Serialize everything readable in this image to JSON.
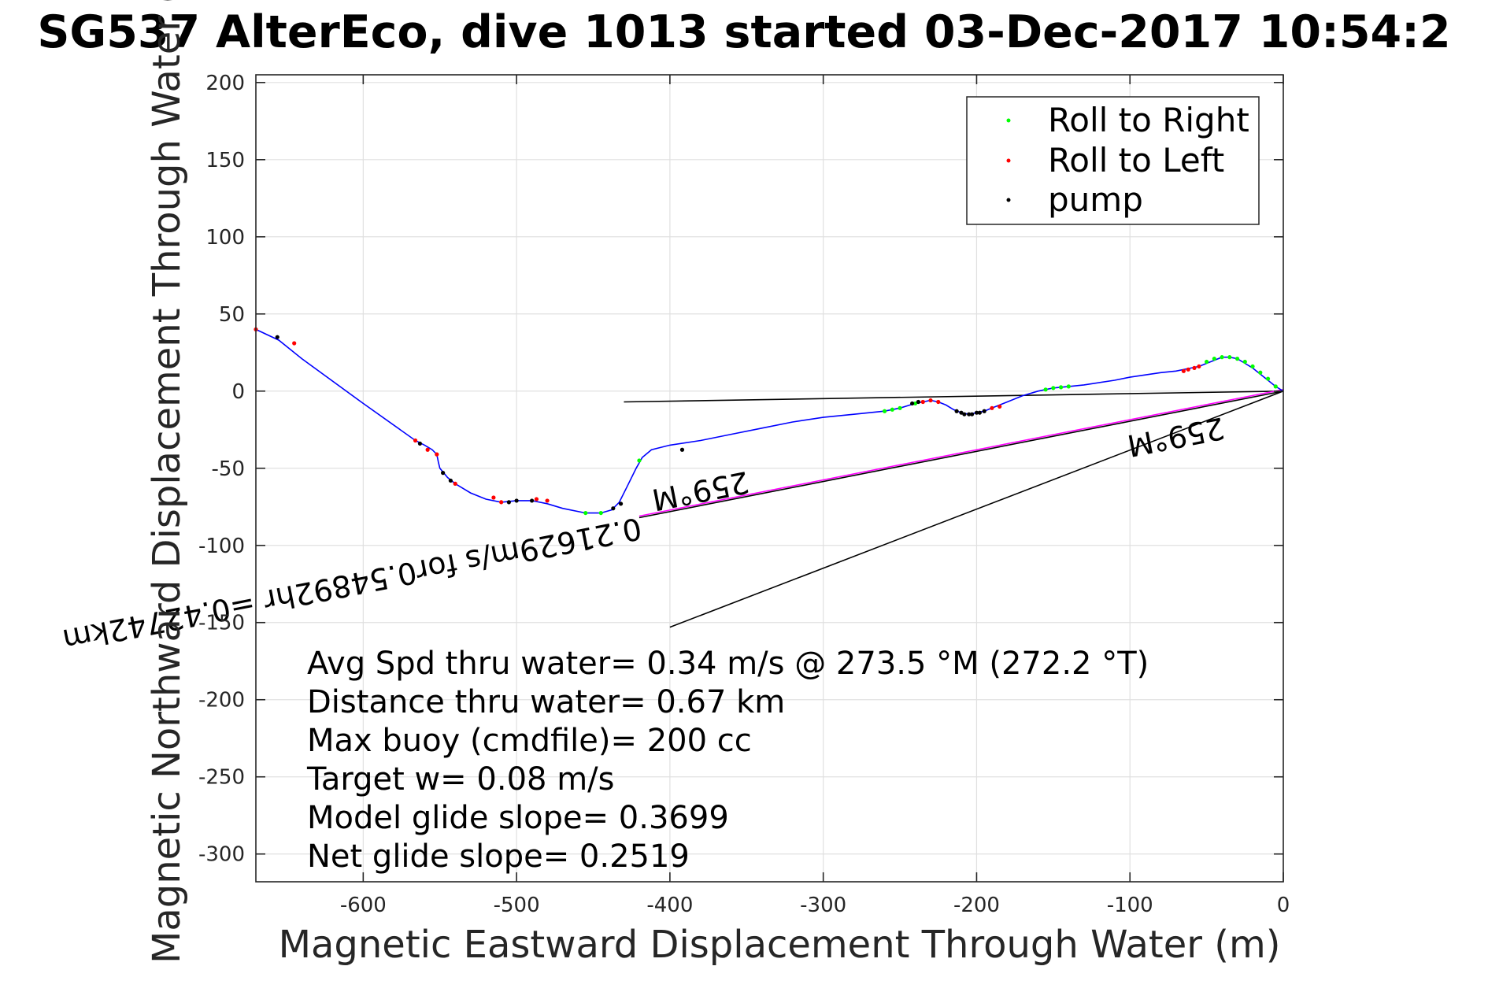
{
  "chart_data": {
    "type": "line",
    "title": "SG537 AlterEco, dive 1013 started 03-Dec-2017 10:54:2",
    "xlabel": "Magnetic Eastward Displacement Through Water (m)",
    "ylabel": "Magnetic Northward Displacement Through Water (",
    "xlim": [
      -670,
      0
    ],
    "ylim": [
      -318,
      205
    ],
    "xticks": [
      -600,
      -500,
      -400,
      -300,
      -200,
      -100,
      0
    ],
    "yticks": [
      200,
      150,
      100,
      50,
      0,
      -50,
      -100,
      -150,
      -200,
      -250,
      -300
    ],
    "grid": true,
    "legend_position": "top-right",
    "legend": [
      {
        "label": "Roll to Right",
        "color": "#00ff00"
      },
      {
        "label": "Roll to Left",
        "color": "#ff0000"
      },
      {
        "label": "pump",
        "color": "#000000"
      }
    ],
    "series": [
      {
        "name": "track",
        "color": "#0000ff",
        "points": [
          [
            0,
            0
          ],
          [
            -5,
            3
          ],
          [
            -10,
            7
          ],
          [
            -15,
            11
          ],
          [
            -20,
            15
          ],
          [
            -25,
            18
          ],
          [
            -30,
            21
          ],
          [
            -35,
            22
          ],
          [
            -40,
            22
          ],
          [
            -45,
            20
          ],
          [
            -50,
            18
          ],
          [
            -55,
            16
          ],
          [
            -60,
            15
          ],
          [
            -70,
            13
          ],
          [
            -80,
            12
          ],
          [
            -100,
            9
          ],
          [
            -110,
            7
          ],
          [
            -130,
            4
          ],
          [
            -140,
            3
          ],
          [
            -150,
            2
          ],
          [
            -160,
            0
          ],
          [
            -170,
            -3
          ],
          [
            -180,
            -7
          ],
          [
            -190,
            -11
          ],
          [
            -195,
            -13
          ],
          [
            -200,
            -14
          ],
          [
            -205,
            -15
          ],
          [
            -210,
            -14
          ],
          [
            -215,
            -12
          ],
          [
            -220,
            -9
          ],
          [
            -225,
            -7
          ],
          [
            -230,
            -6
          ],
          [
            -235,
            -7
          ],
          [
            -240,
            -8
          ],
          [
            -250,
            -11
          ],
          [
            -260,
            -13
          ],
          [
            -280,
            -15
          ],
          [
            -300,
            -17
          ],
          [
            -320,
            -20
          ],
          [
            -340,
            -24
          ],
          [
            -360,
            -28
          ],
          [
            -380,
            -32
          ],
          [
            -400,
            -35
          ],
          [
            -412,
            -38
          ],
          [
            -418,
            -43
          ],
          [
            -422,
            -50
          ],
          [
            -428,
            -62
          ],
          [
            -433,
            -72
          ],
          [
            -438,
            -77
          ],
          [
            -445,
            -79
          ],
          [
            -455,
            -79
          ],
          [
            -470,
            -76
          ],
          [
            -480,
            -73
          ],
          [
            -490,
            -71
          ],
          [
            -500,
            -71
          ],
          [
            -510,
            -72
          ],
          [
            -520,
            -70
          ],
          [
            -530,
            -66
          ],
          [
            -540,
            -60
          ],
          [
            -545,
            -56
          ],
          [
            -550,
            -50
          ],
          [
            -551,
            -46
          ],
          [
            -552,
            -41
          ],
          [
            -555,
            -38
          ],
          [
            -560,
            -35
          ],
          [
            -566,
            -32
          ],
          [
            -600,
            -8
          ],
          [
            -640,
            21
          ],
          [
            -655,
            33
          ],
          [
            -670,
            40
          ]
        ]
      }
    ],
    "roll_right_points": [
      [
        -5,
        3
      ],
      [
        -10,
        8
      ],
      [
        -15,
        12
      ],
      [
        -20,
        16
      ],
      [
        -25,
        19
      ],
      [
        -30,
        21
      ],
      [
        -35,
        22
      ],
      [
        -40,
        22
      ],
      [
        -45,
        21
      ],
      [
        -50,
        19
      ],
      [
        -140,
        3
      ],
      [
        -145,
        2.5
      ],
      [
        -150,
        2
      ],
      [
        -155,
        1
      ],
      [
        -240,
        -8
      ],
      [
        -250,
        -11
      ],
      [
        -255,
        -12
      ],
      [
        -260,
        -13
      ],
      [
        -420,
        -45
      ],
      [
        -445,
        -79
      ],
      [
        -455,
        -79
      ]
    ],
    "roll_left_points": [
      [
        -55,
        16
      ],
      [
        -58,
        15
      ],
      [
        -62,
        14
      ],
      [
        -65,
        13
      ],
      [
        -185,
        -10
      ],
      [
        -190,
        -11
      ],
      [
        -225,
        -7
      ],
      [
        -230,
        -6
      ],
      [
        -235,
        -7
      ],
      [
        -480,
        -71
      ],
      [
        -487,
        -70
      ],
      [
        -510,
        -72
      ],
      [
        -515,
        -69
      ],
      [
        -540,
        -60
      ],
      [
        -552,
        -41
      ],
      [
        -558,
        -38
      ],
      [
        -566,
        -32
      ],
      [
        -645,
        31
      ],
      [
        -670,
        40
      ]
    ],
    "pump_points": [
      [
        -195,
        -13
      ],
      [
        -198,
        -14
      ],
      [
        -200,
        -14
      ],
      [
        -203,
        -15
      ],
      [
        -205,
        -15
      ],
      [
        -208,
        -15
      ],
      [
        -210,
        -14
      ],
      [
        -213,
        -13
      ],
      [
        -238,
        -7
      ],
      [
        -242,
        -8
      ],
      [
        -392,
        -38
      ],
      [
        -432,
        -73
      ],
      [
        -437,
        -76
      ],
      [
        -490,
        -71
      ],
      [
        -500,
        -71
      ],
      [
        -505,
        -72
      ],
      [
        -543,
        -58
      ],
      [
        -548,
        -53
      ],
      [
        -563,
        -34
      ],
      [
        -656,
        35
      ]
    ],
    "black_lines": [
      [
        [
          0,
          0
        ],
        [
          -430,
          -7
        ]
      ],
      [
        [
          0,
          0
        ],
        [
          -400,
          -153
        ]
      ],
      [
        [
          0,
          0
        ],
        [
          -420,
          -82
        ]
      ]
    ],
    "magenta_line": [
      [
        0,
        0
      ],
      [
        -420,
        -82
      ]
    ],
    "rotated_labels": [
      {
        "text": "0.21629m/s for0.54892hr =0.42742km",
        "anchor": [
          -420,
          -82
        ],
        "angle": 168.95
      },
      {
        "text": "259°M",
        "anchor": [
          -350,
          -52
        ],
        "angle": 168.95
      },
      {
        "text": "259°M",
        "anchor": [
          -40,
          -17
        ],
        "angle": 168.95
      }
    ],
    "annotations": [
      "Avg Spd thru water=  0.34 m/s @ 273.5 °M (272.2 °T)",
      "Distance thru water=  0.67 km",
      "Max buoy (cmdfile)= 200 cc",
      "Target w= 0.08 m/s",
      "Model glide slope= 0.3699",
      "Net glide slope= 0.2519"
    ]
  }
}
